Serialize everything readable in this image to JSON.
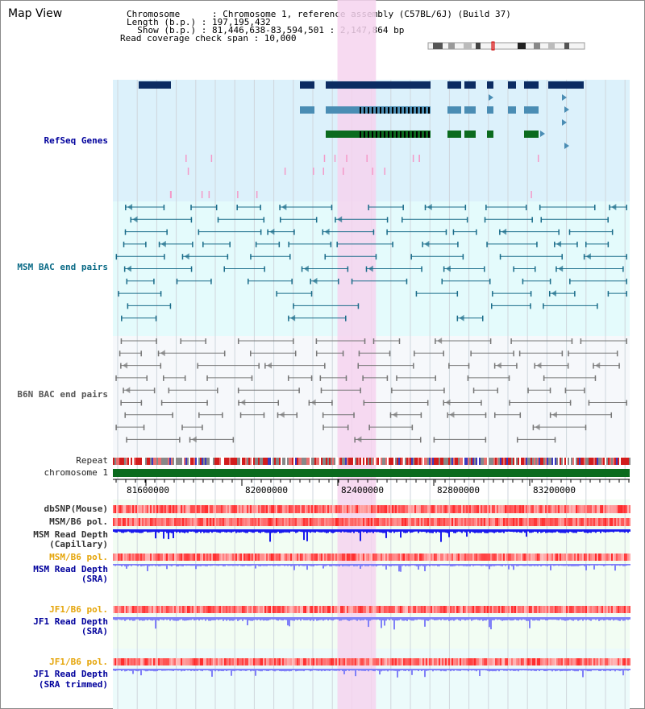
{
  "title": "Map View",
  "header": {
    "line1": "Chromosome      : Chromosome 1, reference assembly (C57BL/6J) (Build 37)",
    "line2": "Length (b.p.) : 197,195,432",
    "line3": "  Show (b.p.) : 81,446,638-83,594,501 : 2,147,864 bp",
    "line4": "Read coverage check span : 10,000"
  },
  "tracks": {
    "refseq": "RefSeq Genes",
    "msm_bac": "MSM BAC end pairs",
    "b6n_bac": "B6N BAC end pairs",
    "repeat": "Repeat",
    "chromosome": "chromosome 1",
    "dbsnp": "dbSNP(Mouse)",
    "msm_b6_pol": "MSM/B6 pol.",
    "msm_depth_cap1": "MSM Read Depth",
    "msm_depth_cap2": "(Capillary)",
    "msm_b6_pol2": "MSM/B6 pol.",
    "msm_depth_sra1": "MSM Read Depth",
    "msm_depth_sra2": "(SRA)",
    "jf1_b6_pol": "JF1/B6 pol.",
    "jf1_depth1": "JF1 Read Depth",
    "jf1_depth2": "(SRA)",
    "jf1_b6_pol2": "JF1/B6 pol.",
    "jf1_trim1": "JF1 Read Depth",
    "jf1_trim2": "(SRA trimmed)"
  },
  "axis": {
    "ticks": [
      "81600000",
      "82000000",
      "82400000",
      "82800000",
      "83200000"
    ],
    "range_start": 81446638,
    "range_end": 83594501
  },
  "highlight": {
    "start": 82380000,
    "end": 82540000
  },
  "colors": {
    "refseq_bg": "#dcf1fb",
    "msm_bg": "#e4fbfc",
    "b6n_bg": "#f6f8fb",
    "highlight": "#f6d3ef",
    "gene_dark": "#0c2c62",
    "gene_mid": "#4a8db4",
    "gene_green": "#0b6b1e",
    "msm_pair": "#1a6c8a",
    "b6n_pair": "#777777",
    "chromosome": "#0b6b1e",
    "depth_blue": "#1a1aee",
    "depth_light": "#8080f8"
  }
}
